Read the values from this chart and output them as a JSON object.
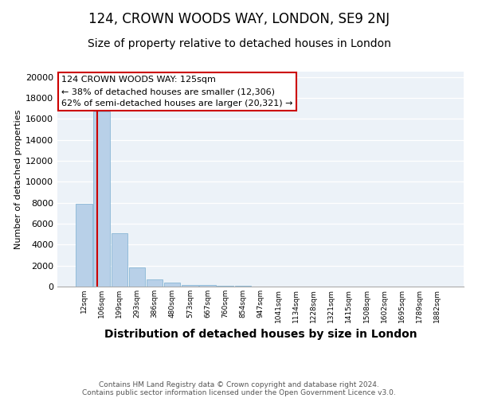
{
  "title": "124, CROWN WOODS WAY, LONDON, SE9 2NJ",
  "subtitle": "Size of property relative to detached houses in London",
  "xlabel": "Distribution of detached houses by size in London",
  "ylabel": "Number of detached properties",
  "categories": [
    "12sqm",
    "106sqm",
    "199sqm",
    "293sqm",
    "386sqm",
    "480sqm",
    "573sqm",
    "667sqm",
    "760sqm",
    "854sqm",
    "947sqm",
    "1041sqm",
    "1134sqm",
    "1228sqm",
    "1321sqm",
    "1415sqm",
    "1508sqm",
    "1602sqm",
    "1695sqm",
    "1789sqm",
    "1882sqm"
  ],
  "values": [
    7900,
    16700,
    5050,
    1800,
    700,
    350,
    180,
    120,
    80,
    90,
    20,
    10,
    5,
    3,
    2,
    1,
    1,
    1,
    1,
    1,
    1
  ],
  "bar_color": "#b8d0e8",
  "bar_edge_color": "#7aaed0",
  "annotation_text": "124 CROWN WOODS WAY: 125sqm\n← 38% of detached houses are smaller (12,306)\n62% of semi-detached houses are larger (20,321) →",
  "annotation_box_color": "#ffffff",
  "annotation_box_edge_color": "#cc0000",
  "property_line_color": "#cc0000",
  "ylim": [
    0,
    20500
  ],
  "yticks": [
    0,
    2000,
    4000,
    6000,
    8000,
    10000,
    12000,
    14000,
    16000,
    18000,
    20000
  ],
  "footer_line1": "Contains HM Land Registry data © Crown copyright and database right 2024.",
  "footer_line2": "Contains public sector information licensed under the Open Government Licence v3.0.",
  "bg_color": "#ecf2f8",
  "title_fontsize": 12,
  "subtitle_fontsize": 10,
  "ylabel_fontsize": 8,
  "xlabel_fontsize": 10,
  "annotation_fontsize": 8,
  "footer_fontsize": 6.5
}
